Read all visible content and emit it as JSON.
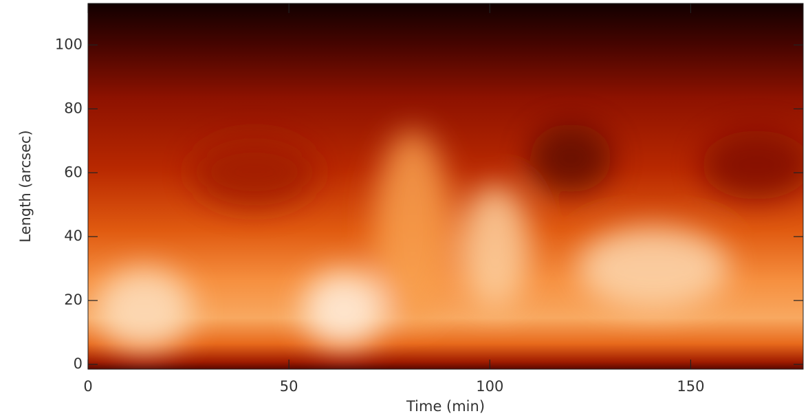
{
  "chart_data": {
    "type": "heatmap",
    "xlabel": "Time (min)",
    "ylabel": "Length (arcsec)",
    "xlim": [
      0,
      178
    ],
    "xticks": [
      0,
      50,
      100,
      150
    ],
    "ylim": [
      -1.5,
      113
    ],
    "yticks": [
      0,
      20,
      40,
      60,
      80,
      100
    ]
  }
}
